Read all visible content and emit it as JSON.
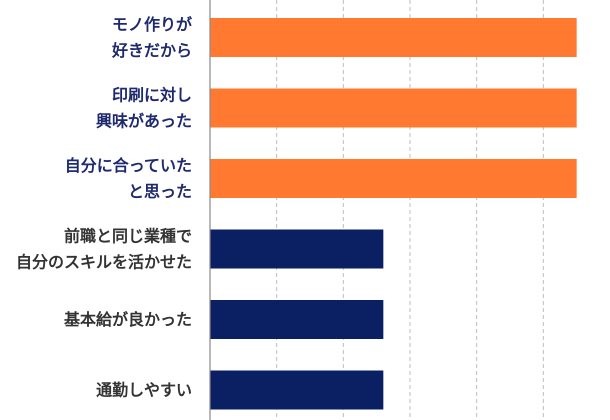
{
  "chart_data": {
    "type": "bar",
    "orientation": "horizontal",
    "categories": [
      [
        "モノ作りが",
        "好きだから"
      ],
      [
        "印刷に対し",
        "興味があった"
      ],
      [
        "自分に合っていた",
        "と思った"
      ],
      [
        "前職と同じ業種で",
        "自分のスキルを活かせた"
      ],
      [
        "基本給が良かった"
      ],
      [
        "通勤しやすい"
      ]
    ],
    "values": [
      110,
      110,
      110,
      52,
      52,
      52
    ],
    "xlim": [
      0,
      120
    ],
    "x_grid_step": 20,
    "grid": true,
    "grid_style": "dashed",
    "bar_colors": [
      "#ff7a30",
      "#ff7a30",
      "#ff7a30",
      "#0b1f63",
      "#0b1f63",
      "#0b1f63"
    ],
    "label_colors": [
      "#1f2a6e",
      "#1f2a6e",
      "#1f2a6e",
      "#333333",
      "#333333",
      "#333333"
    ],
    "title": "",
    "xlabel": "",
    "ylabel": ""
  }
}
